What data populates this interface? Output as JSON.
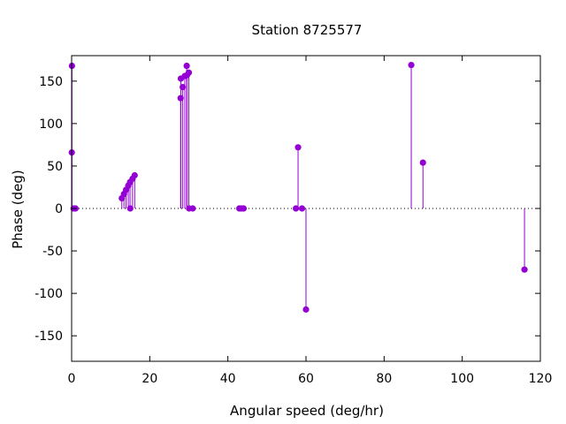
{
  "chart_data": {
    "type": "stem",
    "title": "Station 8725577",
    "xlabel": "Angular speed (deg/hr)",
    "ylabel": "Phase (deg)",
    "xlim": [
      0,
      120
    ],
    "ylim": [
      -180,
      180
    ],
    "xticks": [
      "0",
      "20",
      "40",
      "60",
      "80",
      "100",
      "120"
    ],
    "yticks": [
      "-150",
      "-100",
      "-50",
      "0",
      "50",
      "100",
      "150"
    ],
    "xtick_values": [
      0,
      20,
      40,
      60,
      80,
      100,
      120
    ],
    "ytick_values": [
      -150,
      -100,
      -50,
      0,
      50,
      100,
      150
    ],
    "zero_line": "dotted",
    "grid": false,
    "color": "#9400d3",
    "points": [
      {
        "x": 0.04,
        "y": 66
      },
      {
        "x": 0.08,
        "y": 168
      },
      {
        "x": 0.5,
        "y": 0
      },
      {
        "x": 1.0,
        "y": 0
      },
      {
        "x": 12.85,
        "y": 12
      },
      {
        "x": 13.4,
        "y": 17
      },
      {
        "x": 13.94,
        "y": 22
      },
      {
        "x": 14.5,
        "y": 27
      },
      {
        "x": 14.96,
        "y": 31
      },
      {
        "x": 15.0,
        "y": 0
      },
      {
        "x": 15.59,
        "y": 35
      },
      {
        "x": 16.14,
        "y": 39
      },
      {
        "x": 27.9,
        "y": 130
      },
      {
        "x": 27.97,
        "y": 153
      },
      {
        "x": 28.44,
        "y": 143
      },
      {
        "x": 28.98,
        "y": 156
      },
      {
        "x": 29.46,
        "y": 168
      },
      {
        "x": 29.53,
        "y": 157
      },
      {
        "x": 30.0,
        "y": 160
      },
      {
        "x": 30.08,
        "y": 0
      },
      {
        "x": 31.0,
        "y": 0
      },
      {
        "x": 42.93,
        "y": 0
      },
      {
        "x": 43.48,
        "y": 0
      },
      {
        "x": 44.03,
        "y": 0
      },
      {
        "x": 57.42,
        "y": 0
      },
      {
        "x": 57.97,
        "y": 72
      },
      {
        "x": 58.98,
        "y": 0
      },
      {
        "x": 60.0,
        "y": -119
      },
      {
        "x": 86.95,
        "y": 169
      },
      {
        "x": 89.94,
        "y": 54
      },
      {
        "x": 115.94,
        "y": -72
      }
    ]
  }
}
